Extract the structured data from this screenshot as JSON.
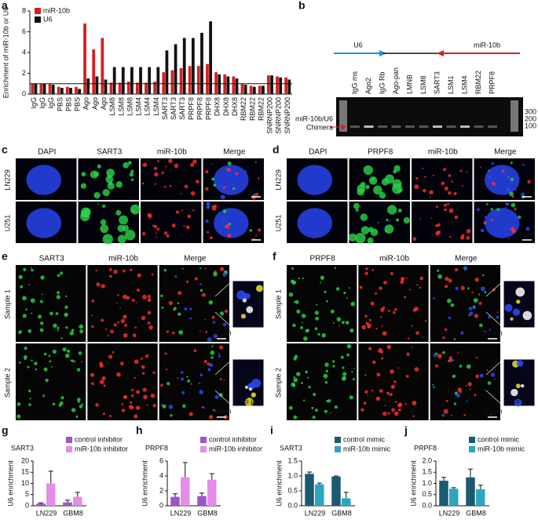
{
  "chart_data": [
    {
      "type": "bar",
      "panel": "a",
      "ylabel": "Enrichment of miR-10b or U6",
      "categories": [
        "IgG",
        "IgG",
        "IgG",
        "PBS",
        "PBS",
        "PBS",
        "Ago",
        "Ago",
        "Ago",
        "LSM8",
        "LSM8",
        "LSM8",
        "LSM4",
        "LSM4",
        "LSM4",
        "SART3",
        "SART3",
        "SART3",
        "PRPF8",
        "PRPF8",
        "PRPF8",
        "DHX8",
        "DHX8",
        "DHX8",
        "RBM22",
        "RBM22",
        "RBM22",
        "SNRNP200",
        "SNRNP200",
        "SNRNP200"
      ],
      "series": [
        {
          "name": "miR-10b",
          "color": "#d42020",
          "values": [
            1,
            1,
            1,
            0.7,
            0.7,
            0.7,
            6.8,
            4.3,
            5.4,
            1.1,
            1.1,
            1.2,
            1.1,
            1.1,
            1.2,
            2.1,
            2.3,
            2.5,
            2.7,
            2.7,
            2.9,
            2.1,
            1.9,
            1.7,
            1,
            0.8,
            0.8,
            1.8,
            1.7,
            1.6
          ]
        },
        {
          "name": "U6",
          "color": "#111111",
          "values": [
            1,
            1,
            0.9,
            0.6,
            0.6,
            0.5,
            1.5,
            1.7,
            1.4,
            2.6,
            2.6,
            2.6,
            2.6,
            2.6,
            2.6,
            4.2,
            4.8,
            5.4,
            5.4,
            5.9,
            7,
            1.9,
            1.7,
            1.5,
            0.9,
            0.7,
            0.8,
            1.8,
            1.6,
            1.4
          ]
        }
      ],
      "ylim": [
        0,
        8
      ],
      "yticks": [
        0,
        2,
        4,
        6,
        8
      ],
      "reference_line": 1,
      "legend": "top-left"
    },
    {
      "type": "bar",
      "panel": "g",
      "title": "SART3",
      "ylabel": "U6 enrichment",
      "categories": [
        "LN229",
        "GBM8"
      ],
      "series": [
        {
          "name": "control inhibitor",
          "color": "#9a57c9",
          "values": [
            1,
            1.5
          ],
          "errors": [
            0.3,
            1
          ]
        },
        {
          "name": "miR-10b inhibitor",
          "color": "#e58de9",
          "values": [
            10,
            4
          ],
          "errors": [
            5.5,
            2
          ]
        }
      ],
      "ylim": [
        0,
        20
      ],
      "yticks": [
        0,
        5,
        10,
        15,
        20
      ],
      "legend": "top-right"
    },
    {
      "type": "bar",
      "panel": "h",
      "title": "PRPF8",
      "ylabel": "U6 enrichment",
      "categories": [
        "LN229",
        "GBM8"
      ],
      "series": [
        {
          "name": "control inhibitor",
          "color": "#9a57c9",
          "values": [
            1.2,
            1.3
          ],
          "errors": [
            0.4,
            0.4
          ]
        },
        {
          "name": "miR-10b inhibitor",
          "color": "#e58de9",
          "values": [
            3.8,
            3.5
          ],
          "errors": [
            2,
            0.8
          ]
        }
      ],
      "ylim": [
        0,
        6
      ],
      "yticks": [
        0,
        2,
        4,
        6
      ],
      "legend": "top-right"
    },
    {
      "type": "bar",
      "panel": "i",
      "title": "SART3",
      "ylabel": "U6 enrichment",
      "categories": [
        "LN229",
        "GBM8"
      ],
      "series": [
        {
          "name": "control mimic",
          "color": "#1b5a70",
          "values": [
            1.07,
            0.98
          ],
          "errors": [
            0.06,
            0.02
          ]
        },
        {
          "name": "miR-10b mimic",
          "color": "#2ba6c0",
          "values": [
            0.72,
            0.25
          ],
          "errors": [
            0.04,
            0.2
          ]
        }
      ],
      "ylim": [
        0,
        1.5
      ],
      "yticks": [
        {
          "value": 0,
          "label": "0.0"
        },
        {
          "value": 0.5,
          "label": "0.5"
        },
        {
          "value": 1,
          "label": "1.0"
        },
        {
          "value": 1.5,
          "label": "1.5"
        }
      ],
      "legend": "top-right"
    },
    {
      "type": "bar",
      "panel": "j",
      "title": "PRPF8",
      "ylabel": "U6 enrichment",
      "categories": [
        "LN229",
        "GBM8"
      ],
      "series": [
        {
          "name": "control mimic",
          "color": "#1b5a70",
          "values": [
            1.12,
            1.27
          ],
          "errors": [
            0.15,
            0.37
          ]
        },
        {
          "name": "miR-10b mimic",
          "color": "#2ba6c0",
          "values": [
            0.76,
            0.74
          ],
          "errors": [
            0.05,
            0.18
          ]
        }
      ],
      "ylim": [
        0,
        2
      ],
      "yticks": [
        {
          "value": 0,
          "label": "0.0"
        },
        {
          "value": 0.5,
          "label": "0.5"
        },
        {
          "value": 1,
          "label": "1.0"
        },
        {
          "value": 1.5,
          "label": "1.5"
        },
        {
          "value": 2,
          "label": "2.0"
        }
      ],
      "legend": "top-right"
    }
  ],
  "gel": {
    "letter": "b",
    "left_arrow": "U6",
    "right_arrow": "miR-10b",
    "lanes": [
      "IgG ms",
      "Ago2",
      "IgG Rb",
      "Ago-pan",
      "LMNB",
      "LSM8",
      "SART3",
      "LSM1",
      "LSM4",
      "RBM22",
      "PRPF8"
    ],
    "band_label": [
      "miR-10b/U6",
      "Chimera"
    ],
    "markers": [
      "300",
      "200",
      "100"
    ]
  },
  "images": [
    {
      "letter": "c",
      "columns": [
        "DAPI",
        "SART3",
        "miR-10b",
        "Merge"
      ],
      "colors": [
        "#1f4fd6",
        "#1a9a3a",
        "#d41818",
        "#e0701e"
      ],
      "rows": [
        "LN229",
        "U251"
      ],
      "scale_bars": [
        "5 μm"
      ]
    },
    {
      "letter": "d",
      "columns": [
        "DAPI",
        "PRPF8",
        "miR-10b",
        "Merge"
      ],
      "colors": [
        "#1f4fd6",
        "#1a9a3a",
        "#d41818",
        "#e0701e"
      ],
      "rows": [
        "LN229",
        "U251"
      ],
      "scale_bars": [
        "5 μm"
      ]
    },
    {
      "letter": "e",
      "columns": [
        "SART3",
        "miR-10b",
        "Merge"
      ],
      "colors": [
        "#1a9a3a",
        "#d41818",
        "#e0701e"
      ],
      "rows": [
        "Sample 1",
        "Sample 2"
      ],
      "scale_bars": [
        "20 μm",
        "5 μm"
      ]
    },
    {
      "letter": "f",
      "columns": [
        "PRPF8",
        "miR-10b",
        "Merge"
      ],
      "colors": [
        "#1a9a3a",
        "#d41818",
        "#e0701e"
      ],
      "rows": [
        "Sample 1",
        "Sample 2"
      ],
      "scale_bars": [
        "20 μm",
        "5 μm"
      ]
    }
  ]
}
